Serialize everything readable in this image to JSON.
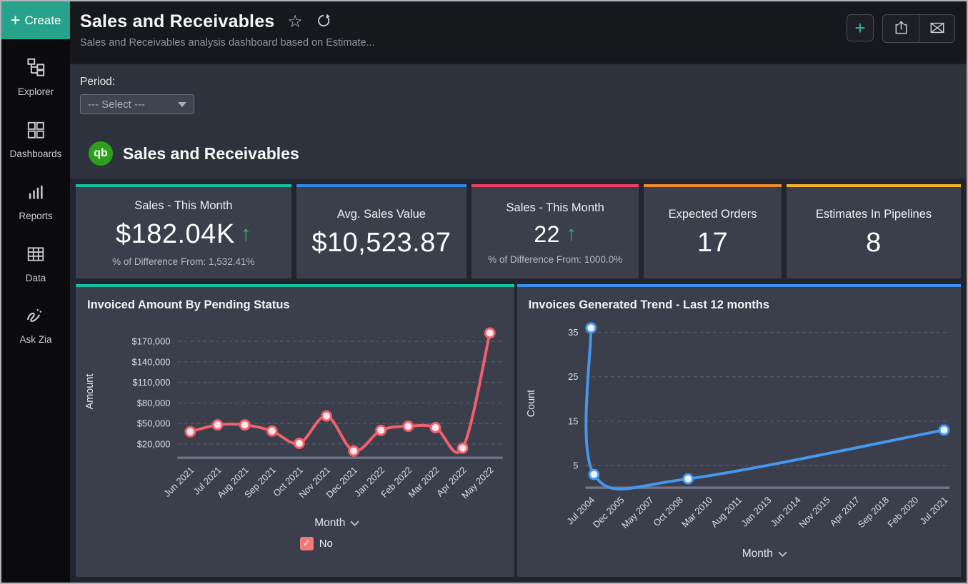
{
  "sidebar": {
    "create_plus": "+",
    "create_label": "Create",
    "items": [
      {
        "label": "Explorer"
      },
      {
        "label": "Dashboards"
      },
      {
        "label": "Reports"
      },
      {
        "label": "Data"
      },
      {
        "label": "Ask Zia"
      }
    ]
  },
  "header": {
    "title": "Sales and Receivables",
    "subtitle": "Sales and Receivables analysis dashboard based on Estimate...",
    "star_glyph": "☆",
    "add_glyph": "+"
  },
  "filter": {
    "label": "Period:",
    "value": "--- Select ---"
  },
  "dashboard": {
    "logo_text": "qb",
    "title": "Sales and Receivables"
  },
  "kpis": [
    {
      "title": "Sales - This Month",
      "value": "$182.04K",
      "arrow": "↑",
      "subtext": "% of Difference From: 1,532.41%",
      "accent": "#17bf9e"
    },
    {
      "title": "Avg. Sales Value",
      "value": "$10,523.87",
      "accent": "#2e86e8"
    },
    {
      "title": "Sales - This Month",
      "value": "22",
      "arrow": "↑",
      "subtext": "% of Difference From: 1000.0%",
      "accent": "#ef3e63"
    },
    {
      "title": "Expected Orders",
      "value": "17",
      "accent": "#ee8b2d"
    },
    {
      "title": "Estimates In Pipelines",
      "value": "8",
      "accent": "#f2b32c"
    }
  ],
  "legend_check": "✓",
  "chart_data": [
    {
      "type": "line",
      "title": "Invoiced Amount By Pending Status",
      "xlabel": "Month",
      "ylabel": "Amount",
      "accent": "#17bf9e",
      "color": "#f25f6d",
      "marker_fill": "#fbe9ec",
      "categories": [
        "Jun 2021",
        "Jul 2021",
        "Aug 2021",
        "Sep 2021",
        "Oct 2021",
        "Nov 2021",
        "Dec 2021",
        "Jan 2022",
        "Feb 2022",
        "Mar 2022",
        "Apr 2022",
        "May 2022"
      ],
      "values": [
        38000,
        48000,
        48000,
        39000,
        21000,
        61000,
        10000,
        40000,
        46000,
        44000,
        14000,
        182040
      ],
      "yticks": [
        20000,
        50000,
        80000,
        110000,
        140000,
        170000
      ],
      "ytick_labels": [
        "$20,000",
        "$50,000",
        "$80,000",
        "$110,000",
        "$140,000",
        "$170,000"
      ],
      "ylim": [
        0,
        193000
      ],
      "grid": "dashed-horizontal",
      "legend": [
        {
          "label": "No",
          "color": "#f47a7a",
          "checked": true
        }
      ]
    },
    {
      "type": "line",
      "title": "Invoices Generated Trend - Last 12 months",
      "xlabel": "Month",
      "ylabel": "Count",
      "accent": "#3d8ff0",
      "color": "#4697ee",
      "marker_fill": "#eef4fd",
      "categories": [
        "Jul 2004",
        "Dec 2005",
        "May 2007",
        "Oct 2008",
        "Mar 2010",
        "Aug 2011",
        "Jan 2013",
        "Jun 2014",
        "Nov 2015",
        "Apr 2017",
        "Sep 2018",
        "Feb 2020",
        "Jul 2021"
      ],
      "points": [
        {
          "x": 0,
          "y": 36
        },
        {
          "x": 0.1,
          "y": 3
        },
        {
          "x": 3.3,
          "y": 2
        },
        {
          "x": 12,
          "y": 13
        }
      ],
      "yticks": [
        5,
        15,
        25,
        35
      ],
      "ytick_labels": [
        "5",
        "15",
        "25",
        "35"
      ],
      "ylim": [
        0,
        38
      ],
      "grid": "dashed-horizontal"
    }
  ]
}
